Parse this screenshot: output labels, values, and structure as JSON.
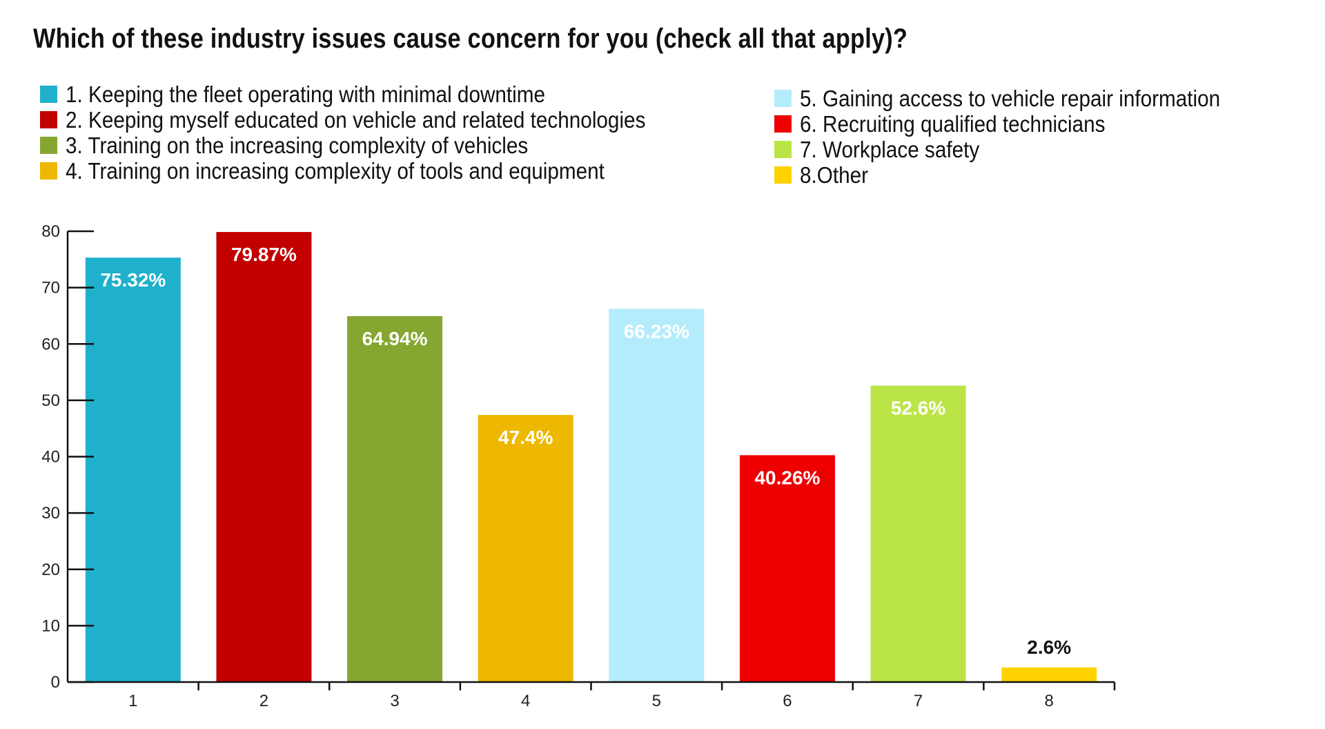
{
  "chart_data": {
    "type": "bar",
    "title": "Which of these industry issues cause concern for you (check all that apply)?",
    "categories": [
      "1",
      "2",
      "3",
      "4",
      "5",
      "6",
      "7",
      "8"
    ],
    "values": [
      75.32,
      79.87,
      64.94,
      47.4,
      66.23,
      40.26,
      52.6,
      2.6
    ],
    "data_labels": [
      "75.32%",
      "79.87%",
      "64.94%",
      "47.4%",
      "66.23%",
      "40.26%",
      "52.6%",
      "2.6%"
    ],
    "colors": [
      "#1fb0cb",
      "#c30000",
      "#86a632",
      "#efb800",
      "#b5ecfb",
      "#ee0000",
      "#bbe547",
      "#ffd200"
    ],
    "label_colors": [
      "#ffffff",
      "#ffffff",
      "#ffffff",
      "#ffffff",
      "#ffffff",
      "#ffffff",
      "#ffffff",
      "#111111"
    ],
    "yticks": [
      "0",
      "10",
      "20",
      "30",
      "40",
      "50",
      "60",
      "70",
      "80"
    ],
    "ylim": [
      0,
      80
    ],
    "xlabel": "",
    "ylabel": "",
    "legend": [
      {
        "label": "1. Keeping the fleet operating with minimal downtime",
        "color": "#1fb0cb"
      },
      {
        "label": "2. Keeping myself educated on vehicle and related technologies",
        "color": "#c30000"
      },
      {
        "label": "3. Training on the increasing complexity of vehicles",
        "color": "#86a632"
      },
      {
        "label": "4. Training on increasing complexity of tools and equipment",
        "color": "#efb800"
      },
      {
        "label": "5. Gaining access to vehicle repair information",
        "color": "#b5ecfb"
      },
      {
        "label": "6. Recruiting qualified technicians",
        "color": "#ee0000"
      },
      {
        "label": "7. Workplace safety",
        "color": "#bbe547"
      },
      {
        "label": "8.Other",
        "color": "#ffd200"
      }
    ]
  }
}
